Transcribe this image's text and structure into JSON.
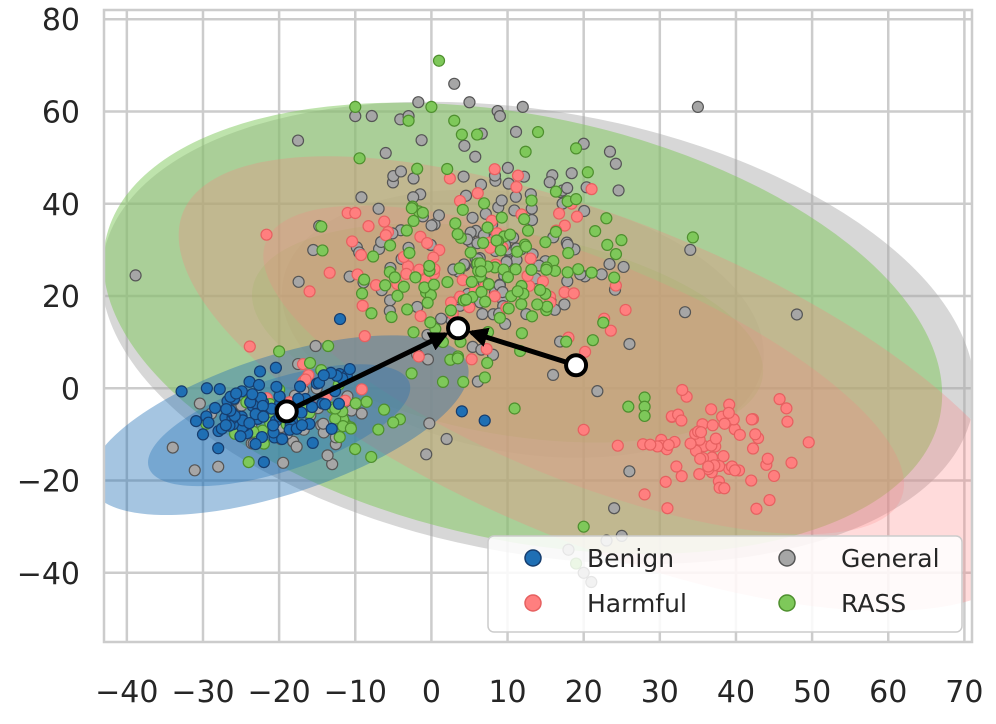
{
  "chart_data": {
    "type": "scatter",
    "title": "",
    "xlabel": "",
    "ylabel": "",
    "xlim": [
      -43,
      71
    ],
    "ylim": [
      -55,
      82
    ],
    "grid": true,
    "x_ticks": [
      -40,
      -30,
      -20,
      -10,
      0,
      10,
      20,
      30,
      40,
      50,
      60,
      70
    ],
    "y_ticks": [
      -40,
      -20,
      0,
      20,
      40,
      60,
      80
    ],
    "x_tick_labels": [
      "−40",
      "−30",
      "−20",
      "−10",
      "0",
      "10",
      "20",
      "30",
      "40",
      "50",
      "60",
      "70"
    ],
    "y_tick_labels": [
      "−40",
      "−20",
      "0",
      "20",
      "40",
      "60",
      "80"
    ],
    "legend_position": "bottom-right",
    "series": [
      {
        "name": "Benign",
        "color": "#1f6fb4",
        "edge": "#163d6e",
        "clusters": [
          {
            "cx": -23,
            "cy": -5,
            "sx": 3.5,
            "sy": 4,
            "n": 75,
            "seed": 11
          },
          {
            "cx": -14,
            "cy": 1,
            "sx": 3,
            "sy": 3,
            "n": 12,
            "seed": 12
          }
        ],
        "points": [
          [
            -12,
            15
          ],
          [
            4,
            -5
          ],
          [
            7,
            -7
          ],
          [
            -27,
            -8
          ],
          [
            -30,
            -10
          ],
          [
            -28,
            -13
          ],
          [
            -22,
            -16
          ],
          [
            -17,
            -8
          ]
        ],
        "ellipses": [
          {
            "cx": -20,
            "cy": -8,
            "rx": 26,
            "ry": 15,
            "angle": 18,
            "opacity": 0.4
          },
          {
            "cx": -20,
            "cy": -8,
            "rx": 18,
            "ry": 10,
            "angle": 18,
            "opacity": 0.35
          }
        ]
      },
      {
        "name": "Harmful",
        "color": "#ff7f7f",
        "edge": "#e66060",
        "clusters": [
          {
            "cx": 37,
            "cy": -12,
            "sx": 5,
            "sy": 5,
            "n": 70,
            "seed": 21
          },
          {
            "cx": 5,
            "cy": 25,
            "sx": 10,
            "sy": 10,
            "n": 70,
            "seed": 22
          },
          {
            "cx": -15,
            "cy": 2,
            "sx": 6,
            "sy": 5,
            "n": 12,
            "seed": 23
          }
        ],
        "points": [
          [
            -11,
            38
          ],
          [
            -10,
            38
          ],
          [
            -16,
            21
          ],
          [
            45,
            -19
          ],
          [
            42,
            -20
          ],
          [
            28,
            -23
          ],
          [
            31,
            -26
          ],
          [
            20,
            -9
          ]
        ],
        "ellipses": [
          {
            "cx": 23,
            "cy": 1,
            "rx": 60,
            "ry": 35,
            "angle": -22,
            "opacity": 0.28
          },
          {
            "cx": 20,
            "cy": 4,
            "rx": 45,
            "ry": 24,
            "angle": -22,
            "opacity": 0.22
          }
        ]
      },
      {
        "name": "General",
        "color": "#a6a6a6",
        "edge": "#555555",
        "clusters": [
          {
            "cx": 6,
            "cy": 30,
            "sx": 11,
            "sy": 12,
            "n": 150,
            "seed": 31
          },
          {
            "cx": -18,
            "cy": -8,
            "sx": 6,
            "sy": 4,
            "n": 40,
            "seed": 32
          }
        ],
        "points": [
          [
            -6,
            51
          ],
          [
            -5,
            46
          ],
          [
            -4,
            47
          ],
          [
            -10,
            59
          ],
          [
            -3,
            59
          ],
          [
            3,
            66
          ],
          [
            5,
            62
          ],
          [
            9,
            59
          ],
          [
            12,
            61
          ],
          [
            35,
            61
          ],
          [
            48,
            16
          ],
          [
            34,
            30
          ],
          [
            20,
            53
          ],
          [
            24,
            -26
          ],
          [
            25,
            -32
          ],
          [
            23,
            -33
          ],
          [
            26,
            -18
          ],
          [
            18,
            -35
          ],
          [
            20,
            -40
          ],
          [
            21,
            -42
          ],
          [
            -28,
            -17
          ],
          [
            2,
            -11
          ]
        ],
        "ellipses": [
          {
            "cx": 14,
            "cy": 12,
            "rx": 58,
            "ry": 48,
            "angle": -10,
            "opacity": 0.45
          },
          {
            "cx": 12,
            "cy": 14,
            "rx": 32,
            "ry": 28,
            "angle": -10,
            "opacity": 0.25
          }
        ]
      },
      {
        "name": "RASS",
        "color": "#7ec85a",
        "edge": "#4e8f2e",
        "clusters": [
          {
            "cx": 8,
            "cy": 25,
            "sx": 10,
            "sy": 12,
            "n": 130,
            "seed": 41
          },
          {
            "cx": -15,
            "cy": -5,
            "sx": 6,
            "sy": 4,
            "n": 35,
            "seed": 42
          }
        ],
        "points": [
          [
            1,
            71
          ],
          [
            -10,
            61
          ],
          [
            0,
            61
          ],
          [
            3,
            58
          ],
          [
            4,
            55
          ],
          [
            6,
            55
          ],
          [
            19,
            52
          ],
          [
            19,
            41
          ],
          [
            -3,
            58
          ],
          [
            24,
            24
          ],
          [
            28,
            -2
          ],
          [
            28,
            -4
          ],
          [
            28,
            -6
          ],
          [
            20,
            -30
          ],
          [
            19,
            -38
          ],
          [
            -20,
            8
          ],
          [
            -22,
            -12
          ],
          [
            -24,
            -16
          ]
        ],
        "ellipses": [
          {
            "cx": 12,
            "cy": 13,
            "rx": 56,
            "ry": 46,
            "angle": -12,
            "opacity": 0.5
          },
          {
            "cx": 10,
            "cy": 12,
            "rx": 34,
            "ry": 22,
            "angle": -10,
            "opacity": 0.25
          }
        ]
      }
    ],
    "centroids": [
      {
        "name": "benign-centroid",
        "x": -19,
        "y": -5
      },
      {
        "name": "general-centroid",
        "x": 3.5,
        "y": 13
      },
      {
        "name": "harmful-centroid",
        "x": 19,
        "y": 5
      }
    ],
    "arrows": [
      {
        "name": "arrow-benign-to-center",
        "from": [
          -19,
          -5
        ],
        "to": [
          3.5,
          13
        ]
      },
      {
        "name": "arrow-harmful-to-center",
        "from": [
          19,
          5
        ],
        "to": [
          3.5,
          13
        ]
      }
    ],
    "legend": {
      "entries": [
        {
          "label": "Benign",
          "color": "#1f6fb4",
          "edge": "#163d6e"
        },
        {
          "label": "General",
          "color": "#a6a6a6",
          "edge": "#555555"
        },
        {
          "label": "Harmful",
          "color": "#ff7f7f",
          "edge": "#e66060"
        },
        {
          "label": "RASS",
          "color": "#7ec85a",
          "edge": "#4e8f2e"
        }
      ]
    }
  }
}
